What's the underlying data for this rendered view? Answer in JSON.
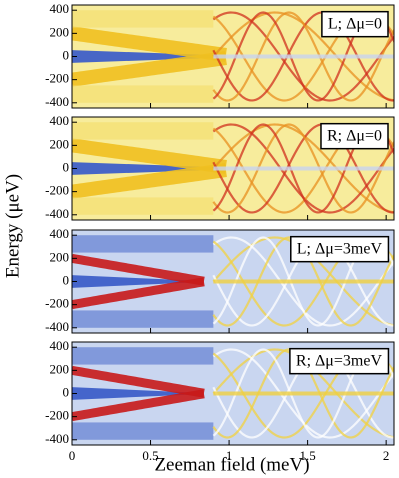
{
  "axis_labels": {
    "x": "Zeeman field (meV)",
    "y": "Energy (μeV)"
  },
  "chart_data": [
    {
      "type": "heatmap",
      "annotation": "L; Δμ=0",
      "xlim": [
        0,
        2.05
      ],
      "ylim": [
        -445,
        445
      ],
      "yticks": [
        400,
        200,
        0,
        -200,
        -400
      ]
    },
    {
      "type": "heatmap",
      "annotation": "R; Δμ=0",
      "xlim": [
        0,
        2.05
      ],
      "ylim": [
        -445,
        445
      ],
      "yticks": [
        400,
        200,
        0,
        -200,
        -400
      ]
    },
    {
      "type": "heatmap",
      "annotation": "L; Δμ=3meV",
      "xlim": [
        0,
        2.05
      ],
      "ylim": [
        -445,
        445
      ],
      "yticks": [
        400,
        200,
        0,
        -200,
        -400
      ]
    },
    {
      "type": "heatmap",
      "annotation": "R; Δμ=3meV",
      "xlim": [
        0,
        2.05
      ],
      "ylim": [
        -445,
        445
      ],
      "yticks": [
        400,
        200,
        0,
        -200,
        -400
      ],
      "xticks": [
        0,
        0.5,
        1,
        1.5,
        2
      ]
    }
  ]
}
